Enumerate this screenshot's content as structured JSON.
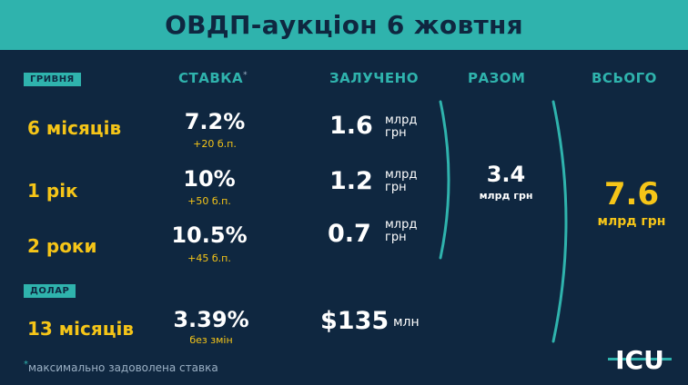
{
  "title": "ОВДП-аукціон 6 жовтня",
  "sections": {
    "uah_label": "ГРИВНЯ",
    "usd_label": "ДОЛАР"
  },
  "columns": {
    "rate": "СТАВКА",
    "rate_marker": "*",
    "raised": "ЗАЛУЧЕНО",
    "subtotal": "РАЗОМ",
    "total": "ВСЬОГО"
  },
  "rows": [
    {
      "term": "6 місяців",
      "rate": "7.2%",
      "delta": "+20 б.п.",
      "amount": "1.6",
      "unit_line1": "млрд",
      "unit_line2": "грн"
    },
    {
      "term": "1 рік",
      "rate": "10%",
      "delta": "+50 б.п.",
      "amount": "1.2",
      "unit_line1": "млрд",
      "unit_line2": "грн"
    },
    {
      "term": "2 роки",
      "rate": "10.5%",
      "delta": "+45 б.п.",
      "amount": "0.7",
      "unit_line1": "млрд",
      "unit_line2": "грн"
    },
    {
      "term": "13 місяців",
      "rate": "3.39%",
      "delta": "без змін",
      "amount": "$135",
      "unit": "млн"
    }
  ],
  "subtotal": {
    "value": "3.4",
    "unit": "млрд грн"
  },
  "total": {
    "value": "7.6",
    "unit": "млрд грн"
  },
  "footnote": {
    "marker": "*",
    "text": "максимально задоволена ставка"
  },
  "logo_text": "ICU",
  "colors": {
    "background": "#0f2740",
    "accent": "#2fb3ad",
    "highlight": "#f5c518",
    "text": "#ffffff"
  }
}
